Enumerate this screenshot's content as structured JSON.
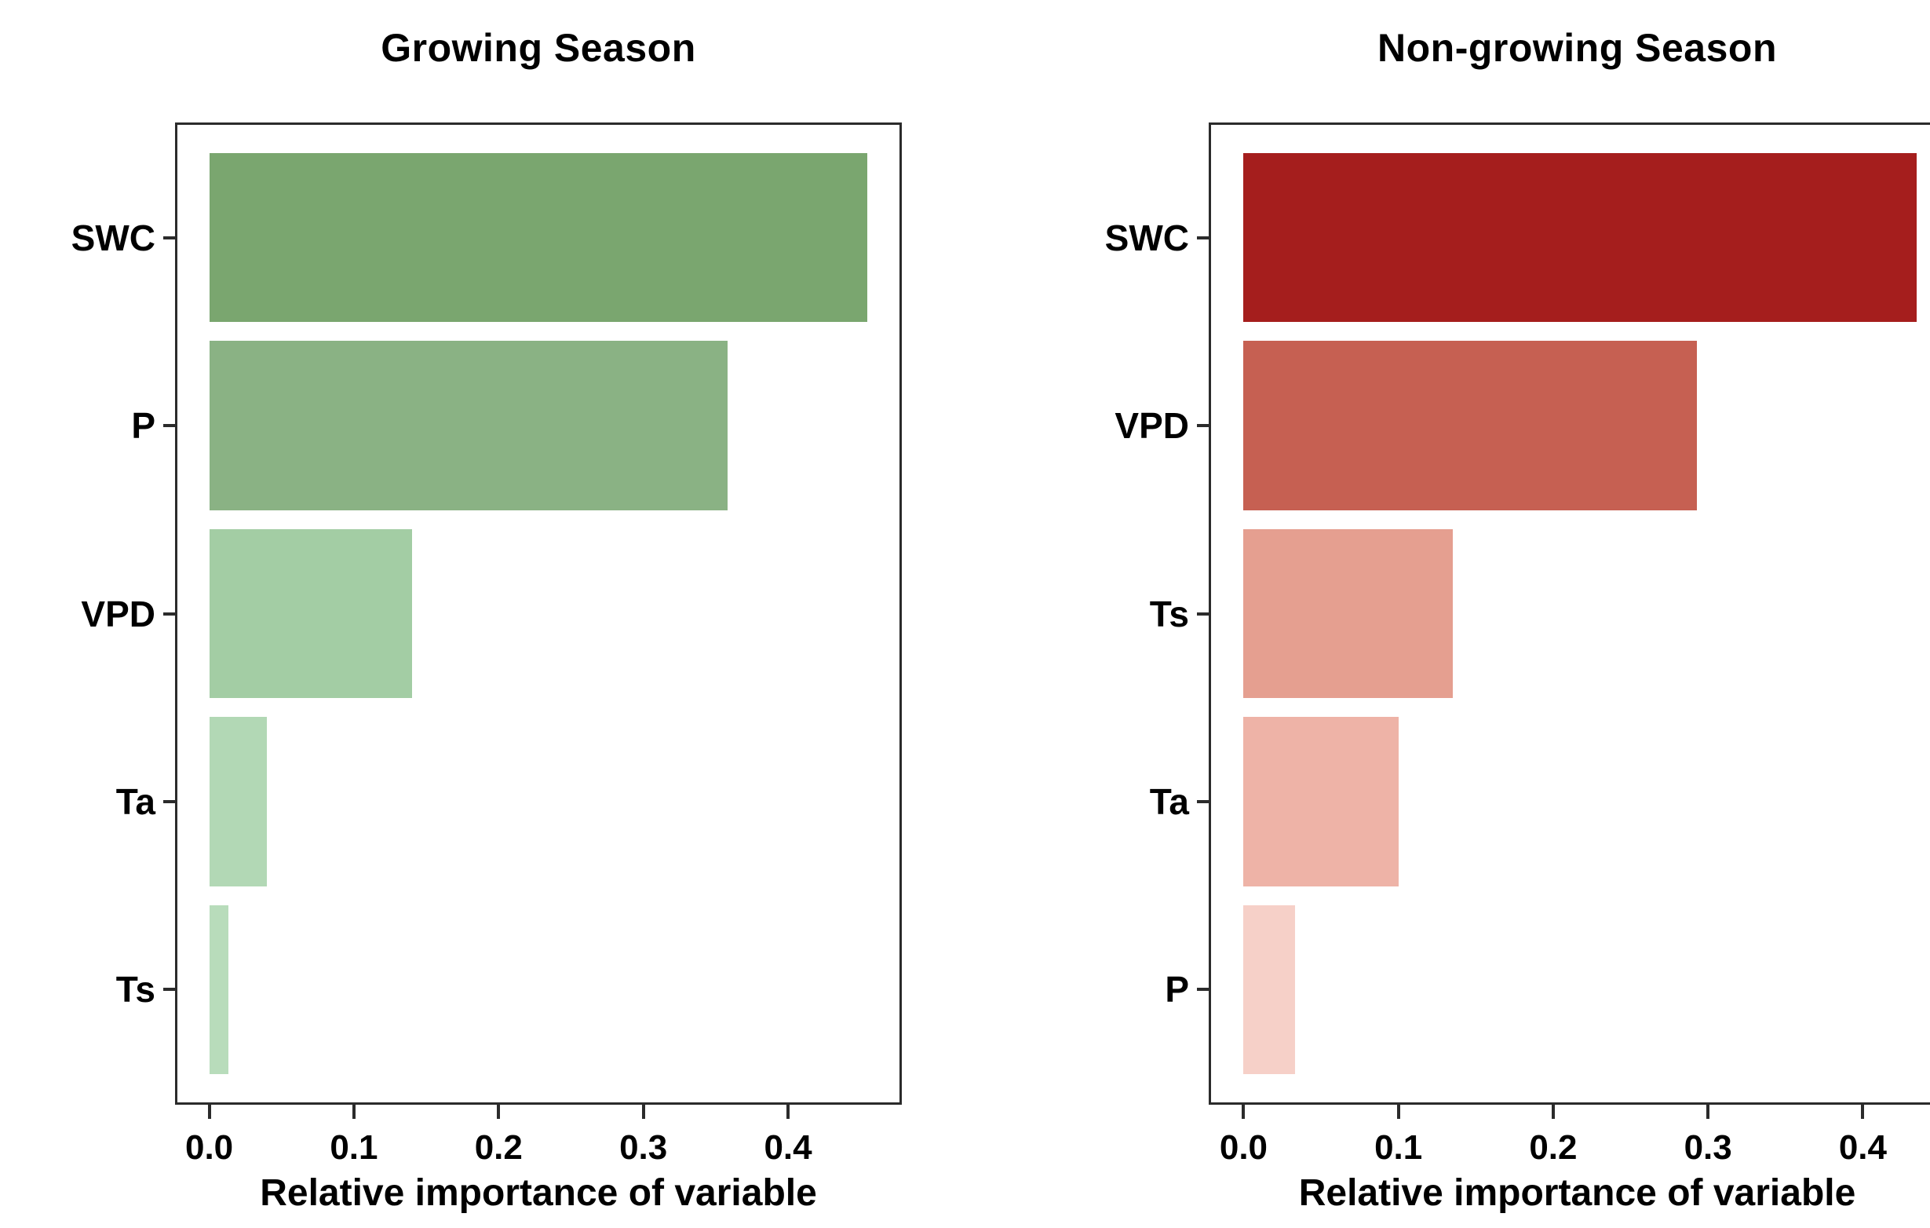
{
  "page": {
    "background": "#ffffff",
    "text_color": "#000000",
    "axis_color": "#2b2b2b"
  },
  "chart_data": [
    {
      "type": "bar",
      "orientation": "horizontal",
      "title": "Growing Season",
      "xlabel": "Relative importance of variable",
      "ylabel": "",
      "categories": [
        "SWC",
        "P",
        "VPD",
        "Ta",
        "Ts"
      ],
      "values": [
        0.455,
        0.358,
        0.14,
        0.04,
        0.013
      ],
      "bar_colors": [
        "#7AA66F",
        "#8AB284",
        "#A3CDA4",
        "#B2D8B5",
        "#B8DCBB"
      ],
      "x_ticks": [
        0.0,
        0.1,
        0.2,
        0.3,
        0.4
      ],
      "x_tick_labels": [
        "0.0",
        "0.1",
        "0.2",
        "0.3",
        "0.4"
      ],
      "xlim": [
        -0.022,
        0.477
      ],
      "grid": false,
      "legend": null,
      "palette": "greens"
    },
    {
      "type": "bar",
      "orientation": "horizontal",
      "title": "Non-growing Season",
      "xlabel": "Relative importance of variable",
      "ylabel": "",
      "categories": [
        "SWC",
        "VPD",
        "Ts",
        "Ta",
        "P"
      ],
      "values": [
        0.435,
        0.293,
        0.135,
        0.1,
        0.033
      ],
      "bar_colors": [
        "#A51E1D",
        "#C66052",
        "#E59F90",
        "#EEB3A7",
        "#F6D0C8"
      ],
      "x_ticks": [
        0.0,
        0.1,
        0.2,
        0.3,
        0.4
      ],
      "x_tick_labels": [
        "0.0",
        "0.1",
        "0.2",
        "0.3",
        "0.4"
      ],
      "xlim": [
        -0.021,
        0.452
      ],
      "grid": false,
      "legend": null,
      "palette": "reds"
    }
  ]
}
